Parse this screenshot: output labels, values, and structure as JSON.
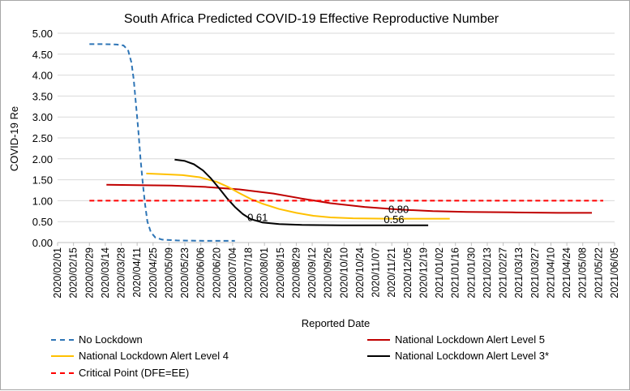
{
  "chart_data": {
    "type": "line",
    "title": "South Africa Predicted COVID-19 Effective Reproductive Number",
    "xlabel": "Reported Date",
    "ylabel": "COVID-19 Re",
    "ylim": [
      0,
      5
    ],
    "yticks": [
      "0.00",
      "0.50",
      "1.00",
      "1.50",
      "2.00",
      "2.50",
      "3.00",
      "3.50",
      "4.00",
      "4.50",
      "5.00"
    ],
    "xlim": [
      0,
      490
    ],
    "xticks": [
      {
        "label": "2020/02/01",
        "day": 0
      },
      {
        "label": "2020/02/15",
        "day": 14
      },
      {
        "label": "2020/02/29",
        "day": 28
      },
      {
        "label": "2020/03/14",
        "day": 42
      },
      {
        "label": "2020/03/28",
        "day": 56
      },
      {
        "label": "2020/04/11",
        "day": 70
      },
      {
        "label": "2020/04/25",
        "day": 84
      },
      {
        "label": "2020/05/09",
        "day": 98
      },
      {
        "label": "2020/05/23",
        "day": 112
      },
      {
        "label": "2020/06/06",
        "day": 126
      },
      {
        "label": "2020/06/20",
        "day": 140
      },
      {
        "label": "2020/07/04",
        "day": 154
      },
      {
        "label": "2020/07/18",
        "day": 168
      },
      {
        "label": "2020/08/01",
        "day": 182
      },
      {
        "label": "2020/08/15",
        "day": 196
      },
      {
        "label": "2020/08/29",
        "day": 210
      },
      {
        "label": "2020/09/12",
        "day": 224
      },
      {
        "label": "2020/09/26",
        "day": 238
      },
      {
        "label": "2020/10/10",
        "day": 252
      },
      {
        "label": "2020/10/24",
        "day": 266
      },
      {
        "label": "2020/11/07",
        "day": 280
      },
      {
        "label": "2020/11/21",
        "day": 294
      },
      {
        "label": "2020/12/05",
        "day": 308
      },
      {
        "label": "2020/12/19",
        "day": 322
      },
      {
        "label": "2021/01/02",
        "day": 336
      },
      {
        "label": "2021/01/16",
        "day": 350
      },
      {
        "label": "2021/01/30",
        "day": 364
      },
      {
        "label": "2021/02/13",
        "day": 378
      },
      {
        "label": "2021/02/27",
        "day": 392
      },
      {
        "label": "2021/03/13",
        "day": 406
      },
      {
        "label": "2021/03/27",
        "day": 420
      },
      {
        "label": "2021/04/10",
        "day": 434
      },
      {
        "label": "2021/04/24",
        "day": 448
      },
      {
        "label": "2021/05/08",
        "day": 462
      },
      {
        "label": "2021/05/22",
        "day": 476
      },
      {
        "label": "2021/06/05",
        "day": 490
      }
    ],
    "series": [
      {
        "name": "No Lockdown",
        "color": "#2e75b6",
        "dash": "dashed",
        "points": [
          [
            28,
            4.74
          ],
          [
            40,
            4.74
          ],
          [
            52,
            4.73
          ],
          [
            58,
            4.71
          ],
          [
            62,
            4.6
          ],
          [
            65,
            4.3
          ],
          [
            67,
            3.9
          ],
          [
            69,
            3.3
          ],
          [
            71,
            2.7
          ],
          [
            73,
            2.0
          ],
          [
            75,
            1.4
          ],
          [
            77,
            0.9
          ],
          [
            79,
            0.5
          ],
          [
            82,
            0.25
          ],
          [
            86,
            0.12
          ],
          [
            92,
            0.07
          ],
          [
            105,
            0.05
          ],
          [
            130,
            0.04
          ],
          [
            156,
            0.04
          ]
        ]
      },
      {
        "name": "National Lockdown Alert Level 5",
        "color": "#c00000",
        "dash": "solid",
        "points": [
          [
            43,
            1.38
          ],
          [
            70,
            1.37
          ],
          [
            100,
            1.36
          ],
          [
            130,
            1.33
          ],
          [
            160,
            1.27
          ],
          [
            190,
            1.17
          ],
          [
            215,
            1.05
          ],
          [
            240,
            0.94
          ],
          [
            270,
            0.85
          ],
          [
            300,
            0.79
          ],
          [
            330,
            0.75
          ],
          [
            360,
            0.73
          ],
          [
            400,
            0.72
          ],
          [
            440,
            0.71
          ],
          [
            470,
            0.71
          ]
        ]
      },
      {
        "name": "National Lockdown Alert Level 4",
        "color": "#ffc000",
        "dash": "solid",
        "points": [
          [
            78,
            1.65
          ],
          [
            95,
            1.63
          ],
          [
            110,
            1.61
          ],
          [
            125,
            1.56
          ],
          [
            140,
            1.45
          ],
          [
            150,
            1.33
          ],
          [
            160,
            1.18
          ],
          [
            170,
            1.04
          ],
          [
            180,
            0.93
          ],
          [
            195,
            0.8
          ],
          [
            210,
            0.71
          ],
          [
            225,
            0.64
          ],
          [
            240,
            0.6
          ],
          [
            260,
            0.58
          ],
          [
            290,
            0.57
          ],
          [
            320,
            0.57
          ],
          [
            345,
            0.57
          ]
        ]
      },
      {
        "name": "National Lockdown Alert Level 3*",
        "color": "#000000",
        "dash": "solid",
        "points": [
          [
            103,
            1.98
          ],
          [
            112,
            1.95
          ],
          [
            120,
            1.87
          ],
          [
            128,
            1.72
          ],
          [
            135,
            1.53
          ],
          [
            142,
            1.3
          ],
          [
            149,
            1.06
          ],
          [
            156,
            0.85
          ],
          [
            163,
            0.68
          ],
          [
            170,
            0.56
          ],
          [
            180,
            0.48
          ],
          [
            195,
            0.44
          ],
          [
            215,
            0.42
          ],
          [
            250,
            0.41
          ],
          [
            290,
            0.41
          ],
          [
            326,
            0.41
          ]
        ]
      },
      {
        "name": "Critical Point (DFE=EE)",
        "color": "#ff0000",
        "dash": "dashed",
        "points": [
          [
            28,
            1.0
          ],
          [
            480,
            1.0
          ]
        ]
      }
    ],
    "annotations": [
      {
        "text": "0.80",
        "day": 300,
        "value": 0.8
      },
      {
        "text": "0.61",
        "day": 176,
        "value": 0.61
      },
      {
        "text": "0.56",
        "day": 296,
        "value": 0.56
      }
    ],
    "legend": {
      "placement": "bottom",
      "entries": [
        "No Lockdown",
        "National Lockdown Alert Level 5",
        "National Lockdown Alert Level 4",
        "National Lockdown Alert Level 3*",
        "Critical Point (DFE=EE)"
      ]
    }
  }
}
